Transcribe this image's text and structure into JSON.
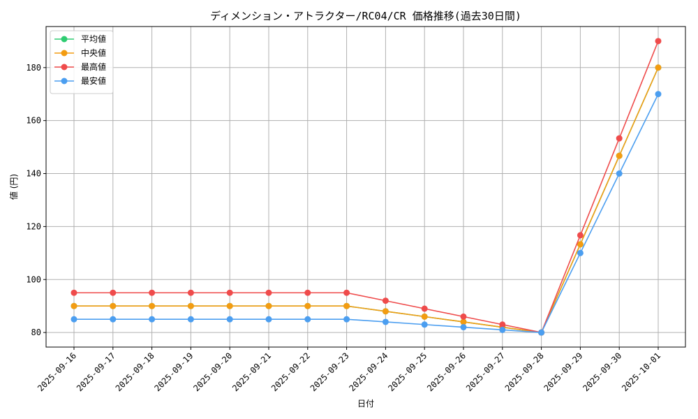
{
  "chart_data": {
    "type": "line",
    "title": "ディメンション・アトラクター/RC04/CR 価格推移(過去30日間)",
    "xlabel": "日付",
    "ylabel": "値 (円)",
    "ylim": [
      74.5,
      195.5
    ],
    "yticks": [
      80,
      100,
      120,
      140,
      160,
      180
    ],
    "grid": true,
    "legend_position": "top-left",
    "categories": [
      "2025-09-16",
      "2025-09-17",
      "2025-09-18",
      "2025-09-19",
      "2025-09-20",
      "2025-09-21",
      "2025-09-22",
      "2025-09-23",
      "2025-09-24",
      "2025-09-25",
      "2025-09-26",
      "2025-09-27",
      "2025-09-28",
      "2025-09-29",
      "2025-09-30",
      "2025-10-01"
    ],
    "series": [
      {
        "name": "平均値",
        "color": "#2ecc71",
        "values": [
          90,
          90,
          90,
          90,
          90,
          90,
          90,
          90,
          88,
          86,
          84,
          82,
          80,
          113.3,
          146.7,
          180
        ]
      },
      {
        "name": "中央値",
        "color": "#f39c12",
        "values": [
          90,
          90,
          90,
          90,
          90,
          90,
          90,
          90,
          88,
          86,
          84,
          82,
          80,
          113.3,
          146.7,
          180
        ]
      },
      {
        "name": "最高値",
        "color": "#ef4b4b",
        "values": [
          95,
          95,
          95,
          95,
          95,
          95,
          95,
          95,
          92,
          89,
          86,
          83,
          80,
          116.7,
          153.3,
          190
        ]
      },
      {
        "name": "最安値",
        "color": "#4b9ef0",
        "values": [
          85,
          85,
          85,
          85,
          85,
          85,
          85,
          85,
          84,
          83,
          82,
          81,
          80,
          110,
          140,
          170
        ]
      }
    ]
  }
}
